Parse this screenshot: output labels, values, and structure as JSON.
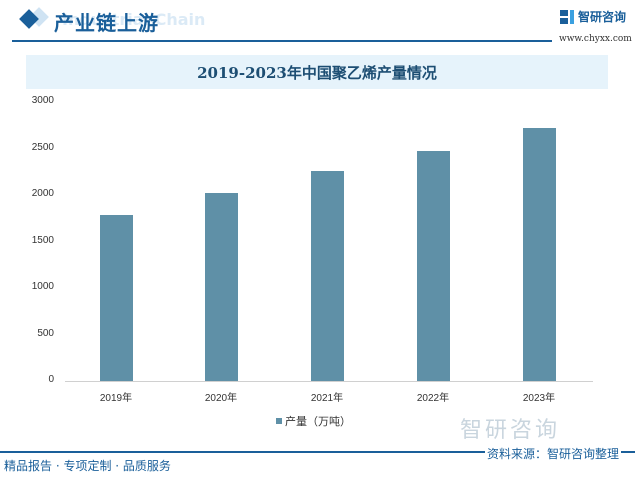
{
  "header": {
    "title": "产业链上游",
    "ghost_text": "Industrial Chain",
    "brand_name": "智研咨询",
    "brand_url": "www.chyxx.com"
  },
  "chart_data": {
    "type": "bar",
    "title": "2019-2023年中国聚乙烯产量情况",
    "categories": [
      "2019年",
      "2020年",
      "2021年",
      "2022年",
      "2023年"
    ],
    "series": [
      {
        "name": "产量（万吨）",
        "values": [
          1785,
          2022,
          2258,
          2473,
          2720
        ],
        "color": "#5f90a7"
      }
    ],
    "xlabel": "",
    "ylabel": "",
    "ylim": [
      0,
      3000
    ],
    "yticks": [
      0,
      500,
      1000,
      1500,
      2000,
      2500,
      3000
    ],
    "grid": false,
    "legend_position": "bottom"
  },
  "legend": {
    "label": "产量（万吨）"
  },
  "footer": {
    "left": "精品报告 · 专项定制 · 品质服务",
    "source": "资料来源：智研咨询整理",
    "watermark": "智研咨询"
  }
}
